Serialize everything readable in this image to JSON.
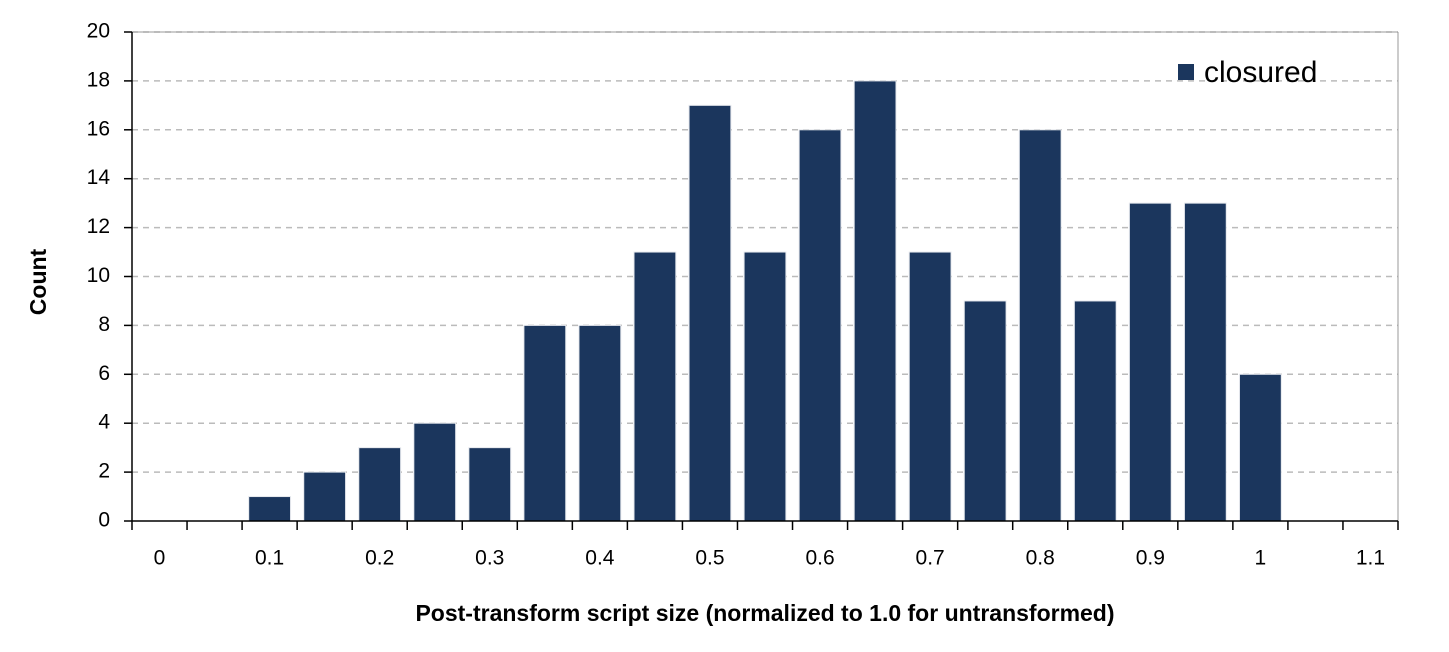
{
  "chart_data": {
    "type": "bar",
    "x_label": "Post-transform script size (normalized to 1.0 for untransformed)",
    "y_label": "Count",
    "categories": [
      "0",
      null,
      "0.1",
      null,
      "0.2",
      null,
      "0.3",
      null,
      "0.4",
      null,
      "0.5",
      null,
      "0.6",
      null,
      "0.7",
      null,
      "0.8",
      null,
      "0.9",
      null,
      "1",
      null,
      "1.1"
    ],
    "series": [
      {
        "name": "closured",
        "color": "#1b365d",
        "values": [
          0,
          0,
          1,
          2,
          3,
          4,
          3,
          8,
          8,
          11,
          17,
          11,
          16,
          18,
          11,
          9,
          16,
          9,
          13,
          13,
          6,
          0,
          0
        ]
      }
    ],
    "ylim": [
      0,
      20
    ],
    "yticks": [
      0,
      2,
      4,
      6,
      8,
      10,
      12,
      14,
      16,
      18,
      20
    ],
    "grid": true,
    "legend": "upper right"
  }
}
